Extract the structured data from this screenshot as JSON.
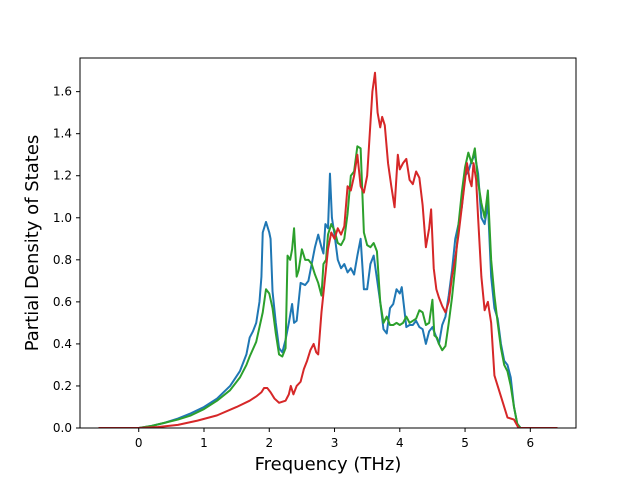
{
  "chart_data": {
    "type": "line",
    "title": "",
    "xlabel": "Frequency (THz)",
    "ylabel": "Partial Density of States",
    "xlim": [
      -0.9,
      6.7
    ],
    "ylim": [
      0.0,
      1.76
    ],
    "xticks": [
      0,
      1,
      2,
      3,
      4,
      5,
      6
    ],
    "yticks": [
      0.0,
      0.2,
      0.4,
      0.6,
      0.8,
      1.0,
      1.2,
      1.4,
      1.6
    ],
    "xtick_labels": [
      "0",
      "1",
      "2",
      "3",
      "4",
      "5",
      "6"
    ],
    "ytick_labels": [
      "0.0",
      "0.2",
      "0.4",
      "0.6",
      "0.8",
      "1.0",
      "1.2",
      "1.4",
      "1.6"
    ],
    "grid": false,
    "legend": "none",
    "series": [
      {
        "color": "#1f77b4",
        "points": [
          [
            -0.6,
            0.0
          ],
          [
            0.0,
            0.0
          ],
          [
            0.2,
            0.01
          ],
          [
            0.4,
            0.025
          ],
          [
            0.6,
            0.045
          ],
          [
            0.8,
            0.07
          ],
          [
            1.0,
            0.1
          ],
          [
            1.2,
            0.14
          ],
          [
            1.4,
            0.2
          ],
          [
            1.55,
            0.27
          ],
          [
            1.65,
            0.35
          ],
          [
            1.7,
            0.43
          ],
          [
            1.75,
            0.46
          ],
          [
            1.8,
            0.5
          ],
          [
            1.85,
            0.6
          ],
          [
            1.88,
            0.72
          ],
          [
            1.9,
            0.93
          ],
          [
            1.95,
            0.98
          ],
          [
            2.0,
            0.93
          ],
          [
            2.02,
            0.9
          ],
          [
            2.05,
            0.65
          ],
          [
            2.1,
            0.5
          ],
          [
            2.15,
            0.38
          ],
          [
            2.2,
            0.36
          ],
          [
            2.25,
            0.42
          ],
          [
            2.3,
            0.5
          ],
          [
            2.35,
            0.59
          ],
          [
            2.38,
            0.5
          ],
          [
            2.42,
            0.51
          ],
          [
            2.48,
            0.69
          ],
          [
            2.55,
            0.68
          ],
          [
            2.6,
            0.7
          ],
          [
            2.65,
            0.78
          ],
          [
            2.7,
            0.86
          ],
          [
            2.75,
            0.92
          ],
          [
            2.8,
            0.86
          ],
          [
            2.83,
            0.83
          ],
          [
            2.86,
            0.97
          ],
          [
            2.9,
            0.95
          ],
          [
            2.93,
            1.21
          ],
          [
            2.96,
            1.0
          ],
          [
            3.0,
            0.92
          ],
          [
            3.05,
            0.8
          ],
          [
            3.1,
            0.76
          ],
          [
            3.15,
            0.78
          ],
          [
            3.2,
            0.74
          ],
          [
            3.25,
            0.76
          ],
          [
            3.3,
            0.73
          ],
          [
            3.35,
            0.82
          ],
          [
            3.4,
            0.9
          ],
          [
            3.45,
            0.66
          ],
          [
            3.5,
            0.66
          ],
          [
            3.55,
            0.78
          ],
          [
            3.6,
            0.82
          ],
          [
            3.65,
            0.71
          ],
          [
            3.7,
            0.6
          ],
          [
            3.75,
            0.47
          ],
          [
            3.8,
            0.45
          ],
          [
            3.85,
            0.57
          ],
          [
            3.9,
            0.59
          ],
          [
            3.95,
            0.66
          ],
          [
            4.0,
            0.64
          ],
          [
            4.03,
            0.67
          ],
          [
            4.06,
            0.59
          ],
          [
            4.1,
            0.48
          ],
          [
            4.15,
            0.49
          ],
          [
            4.2,
            0.49
          ],
          [
            4.25,
            0.51
          ],
          [
            4.3,
            0.48
          ],
          [
            4.35,
            0.47
          ],
          [
            4.4,
            0.4
          ],
          [
            4.45,
            0.46
          ],
          [
            4.5,
            0.48
          ],
          [
            4.55,
            0.44
          ],
          [
            4.6,
            0.4
          ],
          [
            4.65,
            0.49
          ],
          [
            4.7,
            0.53
          ],
          [
            4.75,
            0.63
          ],
          [
            4.8,
            0.75
          ],
          [
            4.85,
            0.9
          ],
          [
            4.9,
            0.97
          ],
          [
            4.95,
            1.05
          ],
          [
            5.0,
            1.2
          ],
          [
            5.05,
            1.22
          ],
          [
            5.1,
            1.27
          ],
          [
            5.15,
            1.3
          ],
          [
            5.2,
            1.21
          ],
          [
            5.25,
            1.0
          ],
          [
            5.3,
            0.97
          ],
          [
            5.35,
            1.07
          ],
          [
            5.4,
            0.72
          ],
          [
            5.45,
            0.57
          ],
          [
            5.5,
            0.52
          ],
          [
            5.55,
            0.4
          ],
          [
            5.6,
            0.32
          ],
          [
            5.65,
            0.3
          ],
          [
            5.7,
            0.24
          ],
          [
            5.75,
            0.1
          ],
          [
            5.8,
            0.02
          ],
          [
            5.85,
            0.0
          ],
          [
            6.4,
            0.0
          ]
        ]
      },
      {
        "color": "#2ca02c",
        "points": [
          [
            -0.6,
            0.0
          ],
          [
            0.0,
            0.0
          ],
          [
            0.2,
            0.01
          ],
          [
            0.4,
            0.025
          ],
          [
            0.6,
            0.04
          ],
          [
            0.8,
            0.06
          ],
          [
            1.0,
            0.09
          ],
          [
            1.2,
            0.13
          ],
          [
            1.4,
            0.18
          ],
          [
            1.55,
            0.24
          ],
          [
            1.65,
            0.3
          ],
          [
            1.7,
            0.34
          ],
          [
            1.8,
            0.41
          ],
          [
            1.9,
            0.55
          ],
          [
            1.95,
            0.66
          ],
          [
            2.0,
            0.64
          ],
          [
            2.05,
            0.57
          ],
          [
            2.1,
            0.45
          ],
          [
            2.15,
            0.35
          ],
          [
            2.2,
            0.34
          ],
          [
            2.25,
            0.38
          ],
          [
            2.28,
            0.82
          ],
          [
            2.32,
            0.8
          ],
          [
            2.35,
            0.85
          ],
          [
            2.38,
            0.95
          ],
          [
            2.42,
            0.72
          ],
          [
            2.45,
            0.75
          ],
          [
            2.5,
            0.85
          ],
          [
            2.55,
            0.8
          ],
          [
            2.6,
            0.8
          ],
          [
            2.65,
            0.78
          ],
          [
            2.7,
            0.73
          ],
          [
            2.75,
            0.69
          ],
          [
            2.8,
            0.63
          ],
          [
            2.83,
            0.78
          ],
          [
            2.87,
            0.8
          ],
          [
            2.9,
            0.92
          ],
          [
            2.95,
            0.97
          ],
          [
            3.0,
            0.94
          ],
          [
            3.05,
            0.88
          ],
          [
            3.1,
            0.87
          ],
          [
            3.15,
            0.9
          ],
          [
            3.2,
            1.02
          ],
          [
            3.25,
            1.2
          ],
          [
            3.3,
            1.22
          ],
          [
            3.35,
            1.34
          ],
          [
            3.4,
            1.33
          ],
          [
            3.45,
            0.93
          ],
          [
            3.5,
            0.87
          ],
          [
            3.55,
            0.86
          ],
          [
            3.6,
            0.88
          ],
          [
            3.65,
            0.84
          ],
          [
            3.7,
            0.6
          ],
          [
            3.75,
            0.5
          ],
          [
            3.8,
            0.53
          ],
          [
            3.85,
            0.49
          ],
          [
            3.9,
            0.49
          ],
          [
            3.95,
            0.5
          ],
          [
            4.0,
            0.49
          ],
          [
            4.05,
            0.5
          ],
          [
            4.1,
            0.53
          ],
          [
            4.15,
            0.5
          ],
          [
            4.2,
            0.51
          ],
          [
            4.25,
            0.52
          ],
          [
            4.3,
            0.56
          ],
          [
            4.35,
            0.55
          ],
          [
            4.4,
            0.49
          ],
          [
            4.45,
            0.5
          ],
          [
            4.5,
            0.61
          ],
          [
            4.53,
            0.44
          ],
          [
            4.57,
            0.43
          ],
          [
            4.6,
            0.4
          ],
          [
            4.65,
            0.37
          ],
          [
            4.7,
            0.39
          ],
          [
            4.75,
            0.5
          ],
          [
            4.8,
            0.62
          ],
          [
            4.85,
            0.77
          ],
          [
            4.9,
            0.97
          ],
          [
            4.95,
            1.12
          ],
          [
            5.0,
            1.24
          ],
          [
            5.05,
            1.31
          ],
          [
            5.1,
            1.26
          ],
          [
            5.15,
            1.33
          ],
          [
            5.2,
            1.17
          ],
          [
            5.25,
            1.07
          ],
          [
            5.3,
            1.0
          ],
          [
            5.35,
            1.13
          ],
          [
            5.4,
            0.8
          ],
          [
            5.45,
            0.63
          ],
          [
            5.5,
            0.5
          ],
          [
            5.55,
            0.38
          ],
          [
            5.6,
            0.3
          ],
          [
            5.65,
            0.27
          ],
          [
            5.7,
            0.2
          ],
          [
            5.75,
            0.1
          ],
          [
            5.8,
            0.02
          ],
          [
            5.85,
            0.0
          ],
          [
            6.4,
            0.0
          ]
        ]
      },
      {
        "color": "#d62728",
        "points": [
          [
            -0.6,
            0.0
          ],
          [
            0.0,
            0.0
          ],
          [
            0.3,
            0.005
          ],
          [
            0.6,
            0.015
          ],
          [
            0.9,
            0.035
          ],
          [
            1.2,
            0.06
          ],
          [
            1.5,
            0.1
          ],
          [
            1.7,
            0.13
          ],
          [
            1.8,
            0.15
          ],
          [
            1.88,
            0.17
          ],
          [
            1.92,
            0.19
          ],
          [
            1.97,
            0.19
          ],
          [
            2.02,
            0.17
          ],
          [
            2.08,
            0.14
          ],
          [
            2.15,
            0.12
          ],
          [
            2.25,
            0.13
          ],
          [
            2.3,
            0.16
          ],
          [
            2.33,
            0.2
          ],
          [
            2.37,
            0.16
          ],
          [
            2.42,
            0.2
          ],
          [
            2.48,
            0.22
          ],
          [
            2.53,
            0.28
          ],
          [
            2.58,
            0.32
          ],
          [
            2.63,
            0.37
          ],
          [
            2.68,
            0.4
          ],
          [
            2.72,
            0.36
          ],
          [
            2.75,
            0.35
          ],
          [
            2.8,
            0.55
          ],
          [
            2.85,
            0.7
          ],
          [
            2.9,
            0.85
          ],
          [
            2.95,
            0.93
          ],
          [
            3.0,
            0.9
          ],
          [
            3.05,
            0.95
          ],
          [
            3.1,
            0.92
          ],
          [
            3.15,
            0.96
          ],
          [
            3.2,
            1.15
          ],
          [
            3.25,
            1.13
          ],
          [
            3.3,
            1.2
          ],
          [
            3.35,
            1.3
          ],
          [
            3.4,
            1.15
          ],
          [
            3.45,
            1.12
          ],
          [
            3.5,
            1.2
          ],
          [
            3.55,
            1.45
          ],
          [
            3.58,
            1.6
          ],
          [
            3.62,
            1.69
          ],
          [
            3.66,
            1.5
          ],
          [
            3.7,
            1.43
          ],
          [
            3.73,
            1.48
          ],
          [
            3.77,
            1.44
          ],
          [
            3.82,
            1.26
          ],
          [
            3.87,
            1.15
          ],
          [
            3.92,
            1.05
          ],
          [
            3.97,
            1.3
          ],
          [
            4.0,
            1.23
          ],
          [
            4.05,
            1.26
          ],
          [
            4.1,
            1.28
          ],
          [
            4.15,
            1.18
          ],
          [
            4.2,
            1.16
          ],
          [
            4.25,
            1.22
          ],
          [
            4.3,
            1.19
          ],
          [
            4.35,
            1.06
          ],
          [
            4.4,
            0.86
          ],
          [
            4.45,
            0.95
          ],
          [
            4.48,
            1.04
          ],
          [
            4.52,
            0.76
          ],
          [
            4.56,
            0.66
          ],
          [
            4.6,
            0.62
          ],
          [
            4.65,
            0.58
          ],
          [
            4.7,
            0.55
          ],
          [
            4.75,
            0.6
          ],
          [
            4.8,
            0.72
          ],
          [
            4.85,
            0.81
          ],
          [
            4.9,
            0.92
          ],
          [
            4.95,
            1.05
          ],
          [
            5.0,
            1.18
          ],
          [
            5.03,
            1.26
          ],
          [
            5.07,
            1.18
          ],
          [
            5.1,
            1.15
          ],
          [
            5.13,
            1.26
          ],
          [
            5.17,
            1.18
          ],
          [
            5.2,
            1.0
          ],
          [
            5.25,
            0.72
          ],
          [
            5.3,
            0.56
          ],
          [
            5.35,
            0.6
          ],
          [
            5.4,
            0.5
          ],
          [
            5.45,
            0.25
          ],
          [
            5.5,
            0.2
          ],
          [
            5.55,
            0.15
          ],
          [
            5.6,
            0.1
          ],
          [
            5.65,
            0.05
          ],
          [
            5.75,
            0.04
          ],
          [
            5.82,
            0.0
          ],
          [
            6.4,
            0.0
          ]
        ]
      }
    ]
  }
}
